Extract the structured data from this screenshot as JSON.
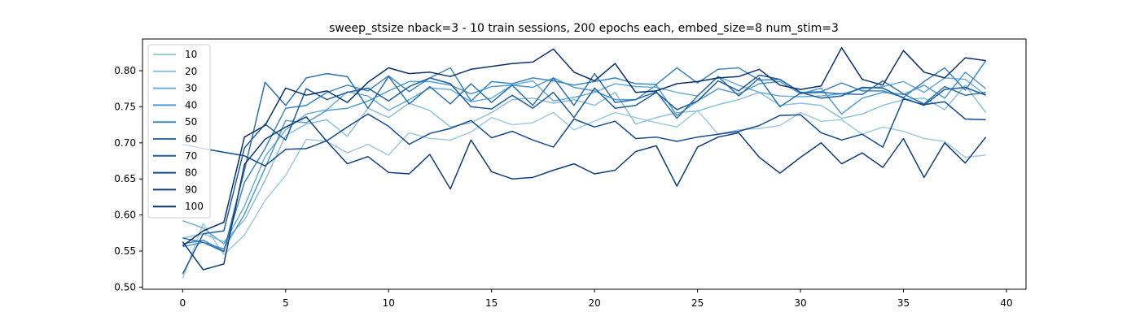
{
  "chart_data": {
    "type": "line",
    "title": "sweep_stsize nback=3 - 10 train sessions, 200 epochs each, embed_size=8 num_stim=3",
    "xlabel": "",
    "ylabel": "",
    "xlim": [
      -1.95,
      40.95
    ],
    "ylim": [
      0.497,
      0.844
    ],
    "xticks": [
      0,
      5,
      10,
      15,
      20,
      25,
      30,
      35,
      40
    ],
    "yticks": [
      0.5,
      0.55,
      0.6,
      0.65,
      0.7,
      0.75,
      0.8
    ],
    "ytick_labels": [
      "0.50",
      "0.55",
      "0.60",
      "0.65",
      "0.70",
      "0.75",
      "0.80"
    ],
    "grid": false,
    "legend_position": "top-left",
    "x": [
      0,
      1,
      2,
      3,
      4,
      5,
      6,
      7,
      8,
      9,
      10,
      11,
      12,
      13,
      14,
      15,
      16,
      17,
      18,
      19,
      20,
      21,
      22,
      23,
      24,
      25,
      26,
      27,
      28,
      29,
      30,
      31,
      32,
      33,
      34,
      35,
      36,
      37,
      38,
      39
    ],
    "series": [
      {
        "name": "10",
        "color": "#9ecae1",
        "values": [
          0.512,
          0.588,
          0.545,
          0.572,
          0.62,
          0.655,
          0.705,
          0.702,
          0.686,
          0.698,
          0.683,
          0.714,
          0.706,
          0.704,
          0.715,
          0.735,
          0.725,
          0.728,
          0.742,
          0.718,
          0.73,
          0.742,
          0.735,
          0.728,
          0.722,
          0.745,
          0.712,
          0.718,
          0.72,
          0.724,
          0.742,
          0.73,
          0.732,
          0.712,
          0.722,
          0.716,
          0.706,
          0.702,
          0.68,
          0.683
        ]
      },
      {
        "name": "20",
        "color": "#8bbfdc",
        "values": [
          0.568,
          0.574,
          0.563,
          0.593,
          0.648,
          0.71,
          0.726,
          0.732,
          0.709,
          0.748,
          0.735,
          0.755,
          0.745,
          0.722,
          0.728,
          0.742,
          0.76,
          0.762,
          0.755,
          0.76,
          0.752,
          0.77,
          0.726,
          0.735,
          0.742,
          0.744,
          0.753,
          0.76,
          0.77,
          0.752,
          0.755,
          0.752,
          0.734,
          0.74,
          0.752,
          0.76,
          0.762,
          0.746,
          0.78,
          0.742
        ]
      },
      {
        "name": "30",
        "color": "#6aaed6",
        "values": [
          0.592,
          0.582,
          0.56,
          0.612,
          0.681,
          0.718,
          0.74,
          0.746,
          0.771,
          0.765,
          0.745,
          0.76,
          0.776,
          0.774,
          0.757,
          0.762,
          0.78,
          0.786,
          0.758,
          0.763,
          0.77,
          0.782,
          0.778,
          0.777,
          0.77,
          0.765,
          0.792,
          0.78,
          0.77,
          0.765,
          0.764,
          0.765,
          0.768,
          0.775,
          0.778,
          0.785,
          0.77,
          0.79,
          0.788,
          0.766
        ]
      },
      {
        "name": "40",
        "color": "#4f9bcf",
        "values": [
          0.556,
          0.562,
          0.553,
          0.601,
          0.665,
          0.731,
          0.728,
          0.745,
          0.748,
          0.758,
          0.772,
          0.785,
          0.785,
          0.78,
          0.768,
          0.778,
          0.78,
          0.777,
          0.79,
          0.777,
          0.772,
          0.76,
          0.76,
          0.78,
          0.738,
          0.758,
          0.775,
          0.768,
          0.782,
          0.785,
          0.768,
          0.776,
          0.74,
          0.762,
          0.77,
          0.767,
          0.78,
          0.762,
          0.798,
          0.775
        ]
      },
      {
        "name": "50",
        "color": "#3a87c0",
        "values": [
          0.56,
          0.565,
          0.55,
          0.645,
          0.692,
          0.748,
          0.752,
          0.77,
          0.78,
          0.772,
          0.793,
          0.771,
          0.79,
          0.804,
          0.758,
          0.785,
          0.782,
          0.79,
          0.786,
          0.78,
          0.785,
          0.79,
          0.782,
          0.781,
          0.804,
          0.783,
          0.802,
          0.804,
          0.787,
          0.788,
          0.77,
          0.771,
          0.783,
          0.772,
          0.772,
          0.763,
          0.785,
          0.804,
          0.773,
          0.814
        ]
      },
      {
        "name": "60",
        "color": "#2b71b0",
        "values": [
          0.568,
          0.562,
          0.549,
          0.662,
          0.784,
          0.752,
          0.79,
          0.796,
          0.792,
          0.748,
          0.792,
          0.754,
          0.778,
          0.754,
          0.782,
          0.756,
          0.78,
          0.752,
          0.79,
          0.752,
          0.796,
          0.756,
          0.76,
          0.771,
          0.734,
          0.765,
          0.792,
          0.765,
          0.79,
          0.75,
          0.769,
          0.77,
          0.768,
          0.767,
          0.786,
          0.768,
          0.754,
          0.778,
          0.766,
          0.77
        ]
      },
      {
        "name": "70",
        "color": "#1c5ca1",
        "values": [
          0.518,
          0.574,
          0.578,
          0.693,
          0.726,
          0.704,
          0.775,
          0.76,
          0.77,
          0.776,
          0.758,
          0.778,
          0.79,
          0.782,
          0.75,
          0.747,
          0.766,
          0.748,
          0.77,
          0.735,
          0.776,
          0.748,
          0.752,
          0.77,
          0.746,
          0.758,
          0.786,
          0.772,
          0.794,
          0.788,
          0.77,
          0.762,
          0.765,
          0.777,
          0.776,
          0.762,
          0.752,
          0.774,
          0.777,
          0.766
        ]
      },
      {
        "name": "80",
        "color": "#134b8f",
        "values": [
          0.698,
          0.692,
          0.687,
          0.682,
          0.668,
          0.691,
          0.692,
          0.703,
          0.722,
          0.74,
          0.723,
          0.698,
          0.713,
          0.72,
          0.731,
          0.707,
          0.716,
          0.704,
          0.694,
          0.733,
          0.722,
          0.73,
          0.706,
          0.708,
          0.702,
          0.708,
          0.712,
          0.716,
          0.724,
          0.738,
          0.739,
          0.714,
          0.704,
          0.712,
          0.694,
          0.761,
          0.753,
          0.757,
          0.733,
          0.732
        ]
      },
      {
        "name": "90",
        "color": "#0d3d7c",
        "values": [
          0.563,
          0.524,
          0.532,
          0.67,
          0.705,
          0.722,
          0.736,
          0.702,
          0.671,
          0.681,
          0.659,
          0.657,
          0.684,
          0.636,
          0.704,
          0.66,
          0.65,
          0.652,
          0.662,
          0.671,
          0.657,
          0.662,
          0.688,
          0.696,
          0.64,
          0.694,
          0.708,
          0.714,
          0.68,
          0.658,
          0.68,
          0.7,
          0.671,
          0.686,
          0.666,
          0.706,
          0.652,
          0.7,
          0.672,
          0.708
        ]
      },
      {
        "name": "100",
        "color": "#08306b",
        "values": [
          0.557,
          0.578,
          0.59,
          0.708,
          0.724,
          0.776,
          0.766,
          0.772,
          0.756,
          0.784,
          0.804,
          0.796,
          0.798,
          0.792,
          0.802,
          0.806,
          0.81,
          0.812,
          0.83,
          0.798,
          0.786,
          0.81,
          0.77,
          0.772,
          0.782,
          0.785,
          0.79,
          0.792,
          0.802,
          0.78,
          0.774,
          0.779,
          0.832,
          0.788,
          0.78,
          0.828,
          0.798,
          0.79,
          0.818,
          0.814
        ]
      }
    ]
  }
}
